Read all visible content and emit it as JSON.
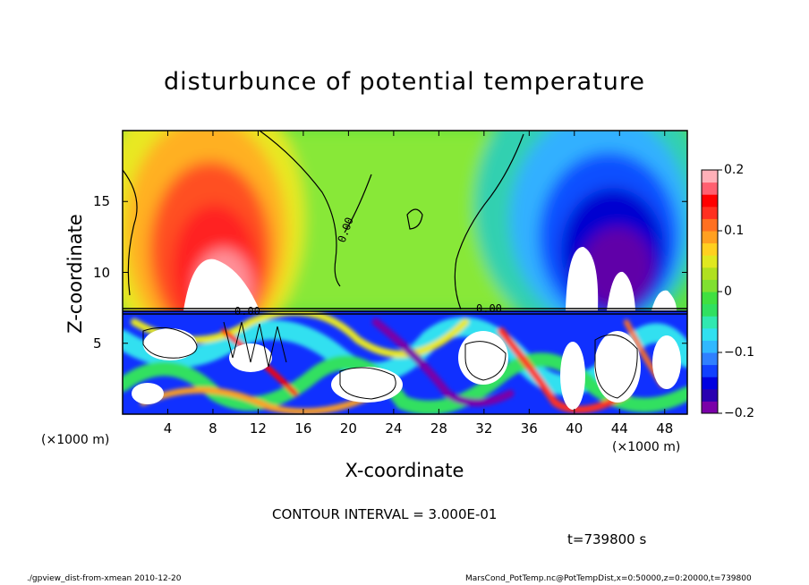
{
  "figure": {
    "title": "disturbunce of potential temperature",
    "xlabel": "X-coordinate",
    "ylabel": "Z-coordinate",
    "x_unit_left": "(×1000 m)",
    "x_unit_right": "(×1000 m)",
    "contour_interval_text": "CONTOUR INTERVAL = 3.000E-01",
    "time_text": "t=739800 s",
    "footer_left": "./gpview_dist-from-xmean  2010-12-20",
    "footer_right": "MarsCond_PotTemp.nc@PotTempDist,x=0:50000,z=0:20000,t=739800",
    "contour_label": "0.00"
  },
  "chart_data": {
    "type": "heatmap",
    "title": "disturbunce of potential temperature",
    "xlabel": "X-coordinate",
    "ylabel": "Z-coordinate",
    "xlim": [
      0,
      50
    ],
    "ylim": [
      0,
      20
    ],
    "x_ticks": [
      4,
      8,
      12,
      16,
      20,
      24,
      28,
      32,
      36,
      40,
      44,
      48
    ],
    "x_tick_labels": [
      "4",
      "8",
      "12",
      "16",
      "20",
      "24",
      "28",
      "32",
      "36",
      "40",
      "44",
      "48"
    ],
    "y_ticks": [
      5,
      10,
      15
    ],
    "y_tick_labels": [
      "5",
      "10",
      "15"
    ],
    "colorbar": {
      "range": [
        -0.2,
        0.2
      ],
      "ticks": [
        0.2,
        0.1,
        0,
        -0.1,
        -0.2
      ],
      "tick_labels": [
        "0.2",
        "0.1",
        "0",
        "−0.1",
        "−0.2"
      ],
      "colors": [
        "#7a00a8",
        "#2a00b0",
        "#0000e0",
        "#1040ff",
        "#2f80ff",
        "#30b8ff",
        "#30e0f0",
        "#30e8b0",
        "#30e060",
        "#40e040",
        "#80e030",
        "#b0e020",
        "#e0e820",
        "#ffd020",
        "#ffa020",
        "#ff7020",
        "#ff3020",
        "#ff0000",
        "#ff6070",
        "#ffb0b8"
      ]
    },
    "contour_interval": 0.3,
    "boundary_z": 7.4,
    "grid": false,
    "legend": "colorbar-right"
  }
}
